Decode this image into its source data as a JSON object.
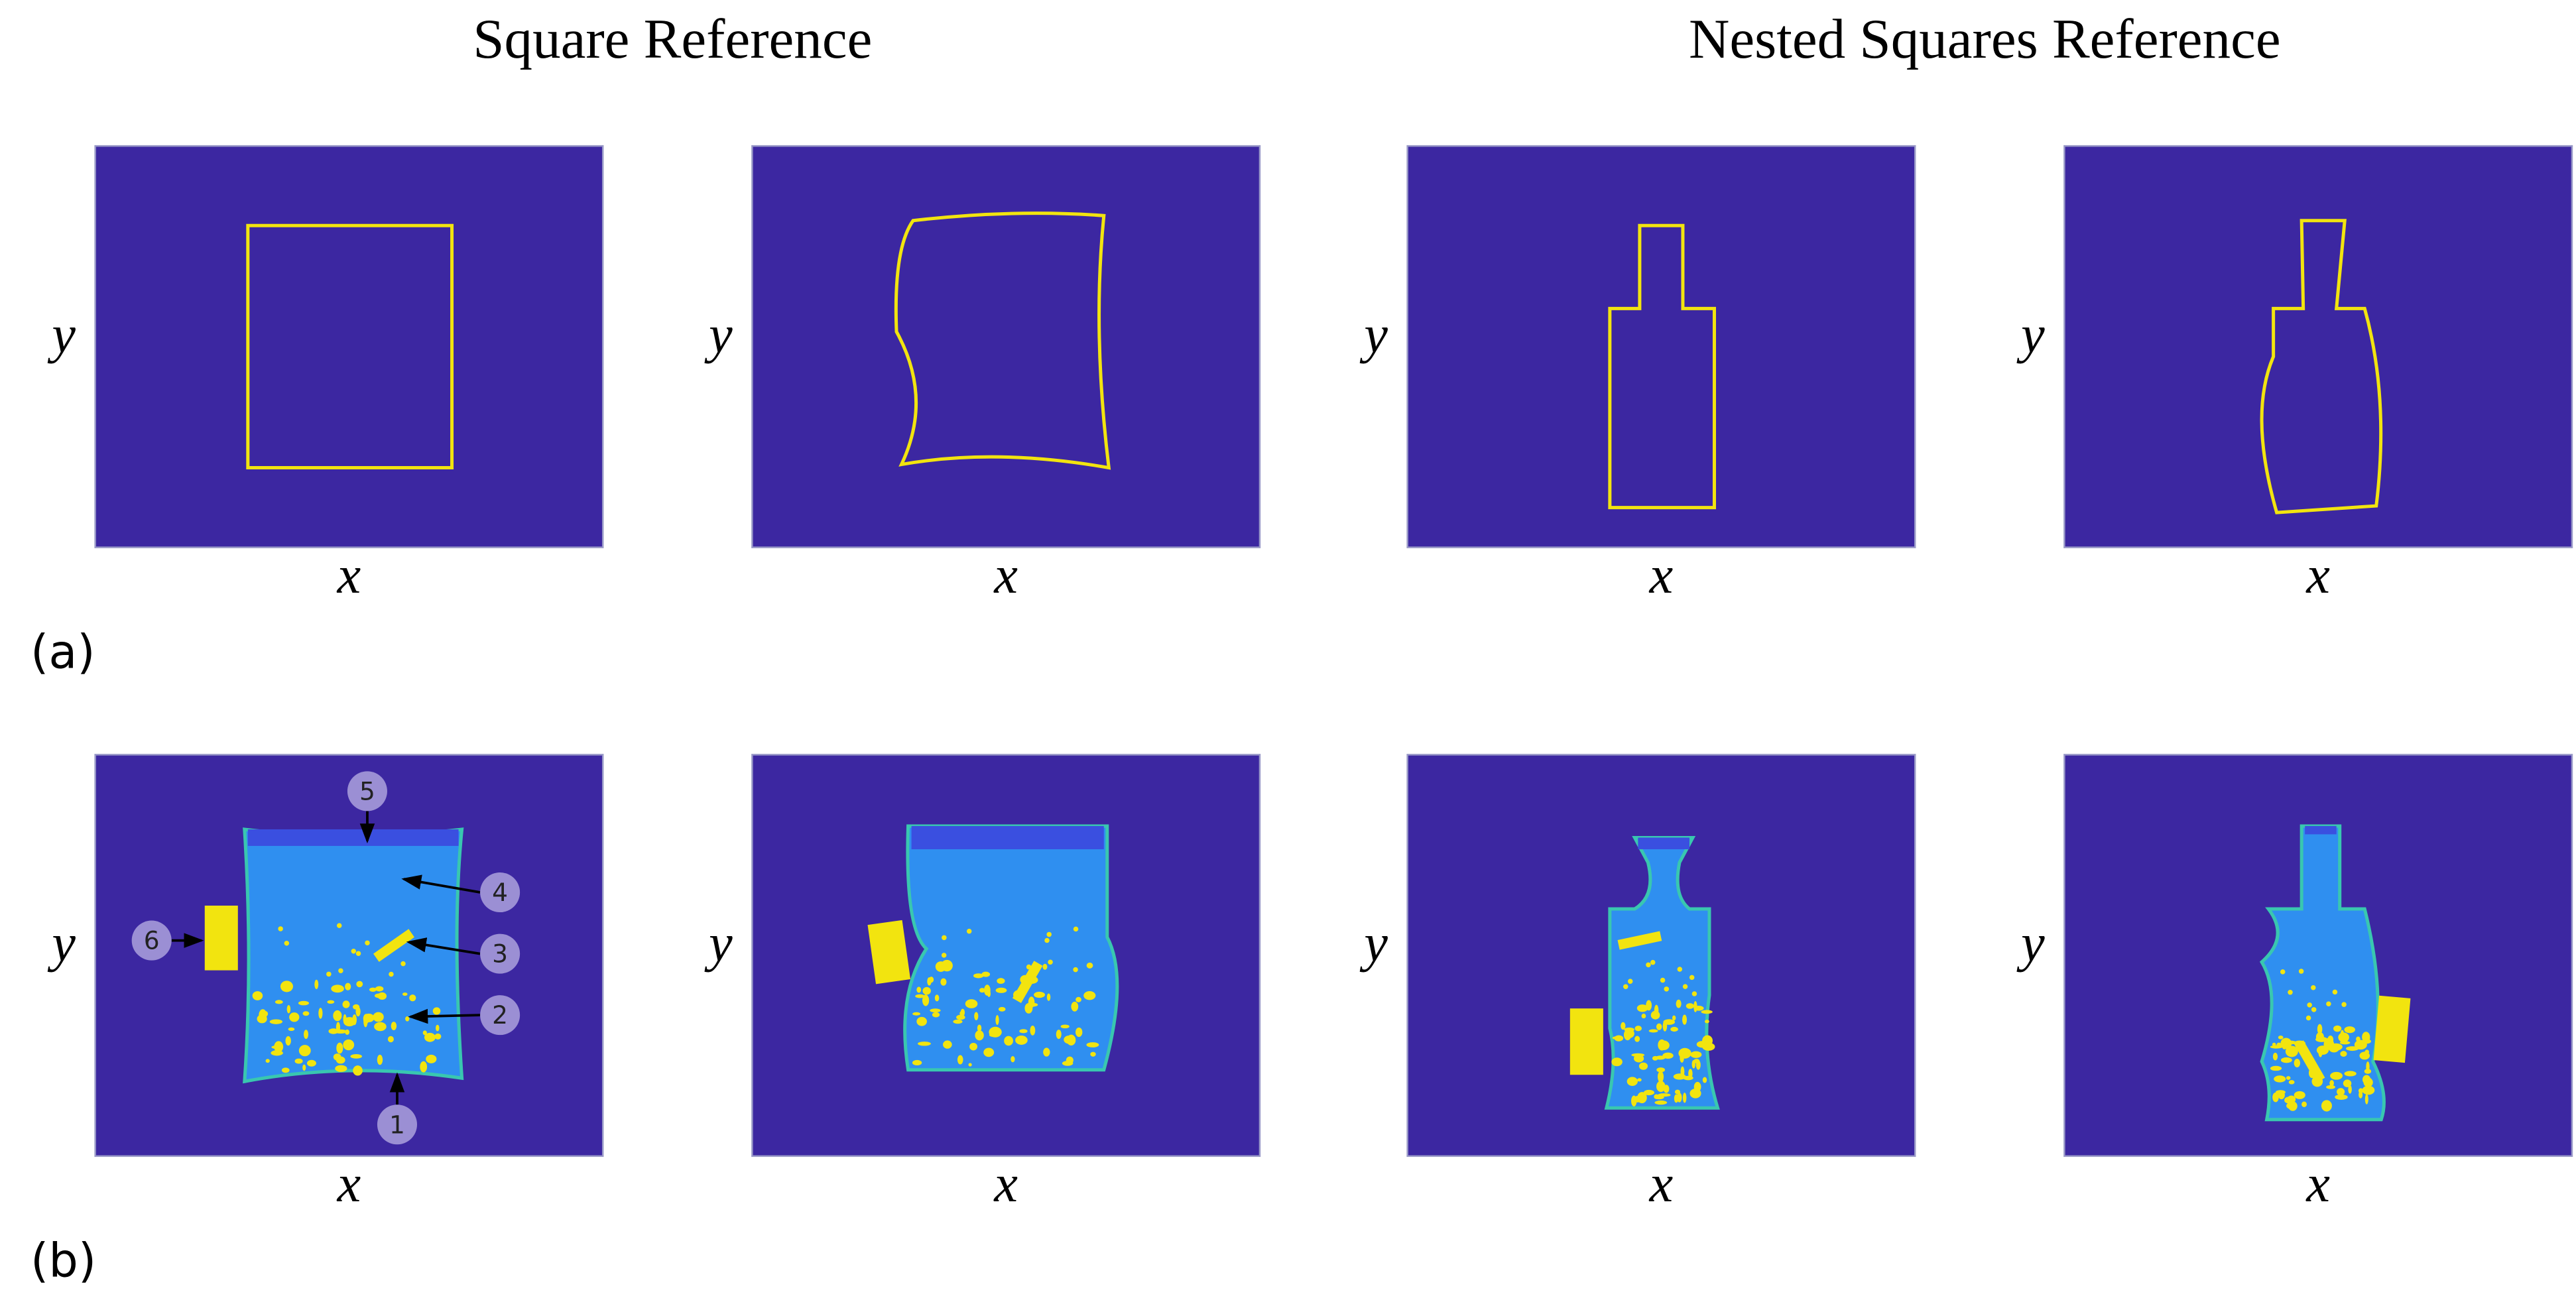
{
  "headers": [
    "Square Reference",
    "Nested Squares Reference"
  ],
  "rows": [
    {
      "label": "(a)",
      "panels": [
        {
          "xlabel": "x",
          "ylabel": "y"
        },
        {
          "xlabel": "x",
          "ylabel": "y"
        },
        {
          "xlabel": "x",
          "ylabel": "y"
        },
        {
          "xlabel": "x",
          "ylabel": "y"
        }
      ]
    },
    {
      "label": "(b)",
      "panels": [
        {
          "xlabel": "x",
          "ylabel": "y"
        },
        {
          "xlabel": "x",
          "ylabel": "y"
        },
        {
          "xlabel": "x",
          "ylabel": "y"
        },
        {
          "xlabel": "x",
          "ylabel": "y"
        }
      ]
    }
  ],
  "annotations": [
    "5",
    "4",
    "3",
    "2",
    "1",
    "6"
  ]
}
